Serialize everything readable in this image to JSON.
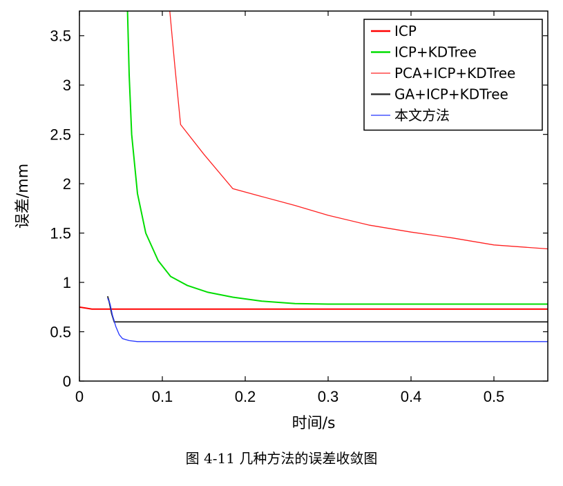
{
  "caption": "图 4-11  几种方法的误差收敛图",
  "chart_data": {
    "type": "line",
    "xlabel": "时间/s",
    "ylabel": "误差/mm",
    "xlim": [
      0,
      0.565
    ],
    "ylim": [
      0,
      3.75
    ],
    "xticks": [
      0,
      0.1,
      0.2,
      0.3,
      0.4,
      0.5
    ],
    "xtick_labels": [
      "0",
      "0.1",
      "0.2",
      "0.3",
      "0.4",
      "0.5"
    ],
    "yticks": [
      0,
      0.5,
      1,
      1.5,
      2,
      2.5,
      3,
      3.5
    ],
    "ytick_labels": [
      "0",
      "0.5",
      "1",
      "1.5",
      "2",
      "2.5",
      "3",
      "3.5"
    ],
    "grid": false,
    "legend_position": "top-right",
    "series": [
      {
        "name": "ICP",
        "color": "#ff0000",
        "x": [
          0.0,
          0.015,
          0.565
        ],
        "y": [
          0.75,
          0.73,
          0.73
        ]
      },
      {
        "name": "ICP+KDTree",
        "color": "#00dd00",
        "x": [
          0.058,
          0.06,
          0.063,
          0.07,
          0.08,
          0.095,
          0.11,
          0.13,
          0.155,
          0.185,
          0.22,
          0.26,
          0.3,
          0.35,
          0.4,
          0.5,
          0.565
        ],
        "y": [
          3.75,
          3.1,
          2.5,
          1.9,
          1.5,
          1.22,
          1.06,
          0.97,
          0.9,
          0.85,
          0.81,
          0.785,
          0.78,
          0.78,
          0.78,
          0.78,
          0.78
        ]
      },
      {
        "name": "PCA+ICP+KDTree",
        "color": "#ff2020",
        "x": [
          0.109,
          0.115,
          0.122,
          0.15,
          0.185,
          0.22,
          0.26,
          0.3,
          0.35,
          0.4,
          0.45,
          0.5,
          0.565
        ],
        "y": [
          3.75,
          3.2,
          2.6,
          2.3,
          1.95,
          1.87,
          1.78,
          1.68,
          1.58,
          1.51,
          1.45,
          1.38,
          1.34
        ]
      },
      {
        "name": "GA+ICP+KDTree",
        "color": "#333333",
        "x": [
          0.034,
          0.036,
          0.039,
          0.042,
          0.565
        ],
        "y": [
          0.86,
          0.8,
          0.68,
          0.6,
          0.6
        ]
      },
      {
        "name": "本文方法",
        "color": "#2233ff",
        "x": [
          0.034,
          0.037,
          0.04,
          0.044,
          0.048,
          0.052,
          0.06,
          0.07,
          0.565
        ],
        "y": [
          0.84,
          0.78,
          0.66,
          0.55,
          0.47,
          0.43,
          0.41,
          0.4,
          0.4
        ]
      }
    ]
  }
}
